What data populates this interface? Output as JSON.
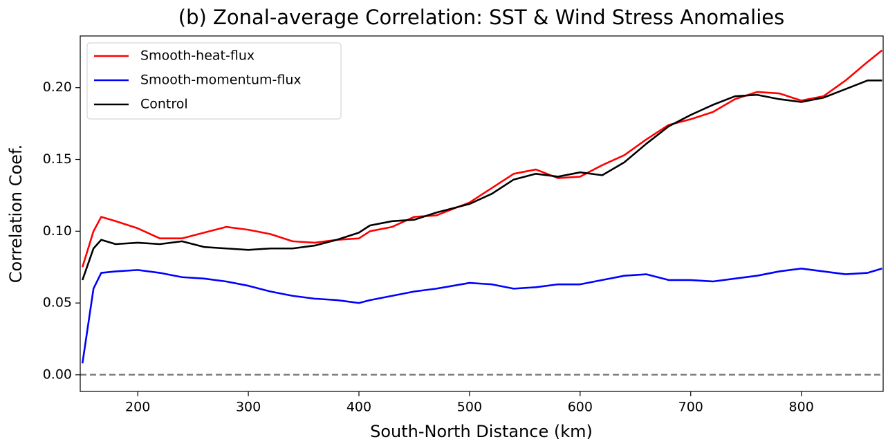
{
  "chart_data": {
    "type": "line",
    "title": "(b) Zonal-average Correlation: SST & Wind Stress Anomalies",
    "xlabel": "South-North Distance (km)",
    "ylabel": "Correlation Coef.",
    "x": [
      150,
      160,
      167,
      180,
      200,
      220,
      240,
      260,
      280,
      300,
      320,
      340,
      360,
      380,
      400,
      410,
      430,
      450,
      470,
      500,
      520,
      540,
      560,
      580,
      600,
      620,
      640,
      660,
      680,
      700,
      720,
      740,
      760,
      780,
      800,
      820,
      840,
      860,
      873
    ],
    "series": [
      {
        "name": "Smooth-heat-flux",
        "color": "#ff0000",
        "values": [
          0.075,
          0.1,
          0.11,
          0.107,
          0.102,
          0.095,
          0.095,
          0.099,
          0.103,
          0.101,
          0.098,
          0.093,
          0.092,
          0.094,
          0.095,
          0.1,
          0.103,
          0.11,
          0.111,
          0.12,
          0.13,
          0.14,
          0.143,
          0.137,
          0.138,
          0.146,
          0.153,
          0.164,
          0.174,
          0.178,
          0.183,
          0.192,
          0.197,
          0.196,
          0.191,
          0.194,
          0.205,
          0.218,
          0.226
        ]
      },
      {
        "name": "Smooth-momentum-flux",
        "color": "#0000ff",
        "values": [
          0.008,
          0.06,
          0.071,
          0.072,
          0.073,
          0.071,
          0.068,
          0.067,
          0.065,
          0.062,
          0.058,
          0.055,
          0.053,
          0.052,
          0.05,
          0.052,
          0.055,
          0.058,
          0.06,
          0.064,
          0.063,
          0.06,
          0.061,
          0.063,
          0.063,
          0.066,
          0.069,
          0.07,
          0.066,
          0.066,
          0.065,
          0.067,
          0.069,
          0.072,
          0.074,
          0.072,
          0.07,
          0.071,
          0.074
        ]
      },
      {
        "name": "Control",
        "color": "#000000",
        "values": [
          0.066,
          0.088,
          0.094,
          0.091,
          0.092,
          0.091,
          0.093,
          0.089,
          0.088,
          0.087,
          0.088,
          0.088,
          0.09,
          0.094,
          0.099,
          0.104,
          0.107,
          0.108,
          0.113,
          0.119,
          0.126,
          0.136,
          0.14,
          0.138,
          0.141,
          0.139,
          0.148,
          0.161,
          0.173,
          0.181,
          0.188,
          0.194,
          0.195,
          0.192,
          0.19,
          0.193,
          0.199,
          0.205,
          0.205
        ]
      }
    ],
    "xlim": [
      148,
      874
    ],
    "ylim": [
      -0.0116,
      0.236
    ],
    "xticks": [
      200,
      300,
      400,
      500,
      600,
      700,
      800
    ],
    "yticks": [
      {
        "value": 0,
        "label": "0.00"
      },
      {
        "value": 0.05,
        "label": "0.05"
      },
      {
        "value": 0.1,
        "label": "0.10"
      },
      {
        "value": 0.15,
        "label": "0.15"
      },
      {
        "value": 0.2,
        "label": "0.20"
      }
    ],
    "hline": {
      "value": 0,
      "color": "#808080"
    },
    "legend": "upper left",
    "grid": false
  }
}
